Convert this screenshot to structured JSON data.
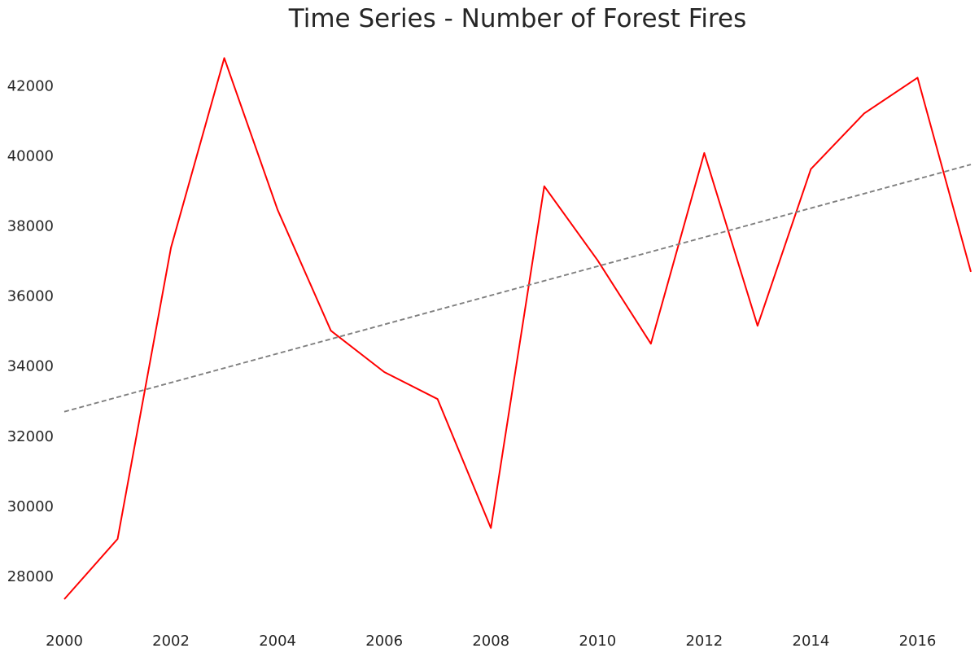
{
  "chart_data": {
    "type": "line",
    "title": "Time Series - Number of Forest Fires",
    "xlabel": "",
    "ylabel": "",
    "xlim": [
      2000,
      2017
    ],
    "ylim": [
      26700,
      43400
    ],
    "grid": false,
    "x_ticks": [
      "2000",
      "2002",
      "2004",
      "2006",
      "2008",
      "2010",
      "2012",
      "2014",
      "2016"
    ],
    "y_ticks": [
      "28000",
      "30000",
      "32000",
      "34000",
      "36000",
      "38000",
      "40000",
      "42000"
    ],
    "series": [
      {
        "color": "#ff0000",
        "style": "solid",
        "x": [
          2000,
          2001,
          2002,
          2003,
          2004,
          2005,
          2006,
          2007,
          2008,
          2009,
          2010,
          2011,
          2012,
          2013,
          2014,
          2015,
          2016,
          2017
        ],
        "values": [
          27350,
          29070,
          37380,
          42790,
          38460,
          35010,
          33830,
          33060,
          29380,
          39130,
          37020,
          34640,
          40080,
          35150,
          39620,
          41210,
          42230,
          36690
        ]
      },
      {
        "color": "#808080",
        "style": "dashed",
        "x": [
          2000,
          2017
        ],
        "values": [
          32700,
          39750
        ]
      }
    ]
  }
}
